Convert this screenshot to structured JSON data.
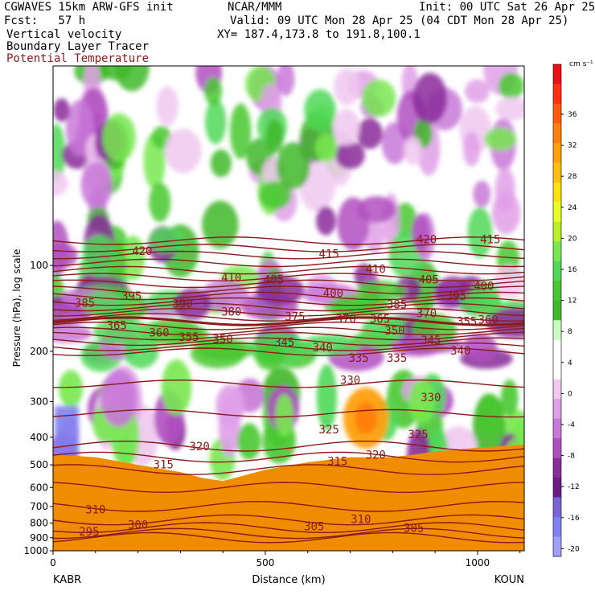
{
  "header": {
    "model": "CGWAVES 15km ARW-GFS init",
    "org": "NCAR/MMM",
    "init": "Init: 00 UTC Sat 26 Apr 25",
    "fcst": "Fcst:   57 h",
    "valid": "Valid: 09 UTC Mon 28 Apr 25 (04 CDT Mon 28 Apr 25)",
    "field1": "Vertical velocity",
    "field2": "Boundary Layer Tracer",
    "field3": "Potential Temperature",
    "xy": "XY= 187.4,173.8 to 191.8,100.1"
  },
  "colors": {
    "theta": "#8b1a1a",
    "pbl": "#f08c00",
    "text": "#000000"
  },
  "chart_data": {
    "type": "heatmap",
    "title": "Vertical velocity / Boundary Layer Tracer / Potential Temperature cross section",
    "xlabel": "Distance (km)",
    "ylabel": "Pressure (hPa), log scale",
    "xlim": [
      0,
      1110
    ],
    "ylim": [
      1000,
      20
    ],
    "x_ticks": [
      0,
      500,
      1000
    ],
    "y_ticks": [
      100,
      200,
      300,
      400,
      500,
      600,
      700,
      800,
      900,
      1000
    ],
    "endpoints": {
      "left": "KABR",
      "right": "KOUN"
    },
    "colorbar": {
      "units": "cm s⁻¹",
      "labels": [
        36,
        32,
        28,
        24,
        20,
        16,
        12,
        8,
        4,
        0,
        -4,
        -8,
        -12,
        -16,
        -20
      ],
      "colors": [
        "#e81212",
        "#ff3010",
        "#ff5a10",
        "#ff7e10",
        "#ffa010",
        "#ffbe10",
        "#ffe010",
        "#e8ff28",
        "#b8f028",
        "#78e850",
        "#50d858",
        "#48c830",
        "#40b828",
        "#c8ffc0",
        "#ffffff",
        "#ffffff",
        "#f0c8f0",
        "#e0a0e8",
        "#c878d8",
        "#b050c0",
        "#8a2c9a",
        "#6a1c84",
        "#7a64d8",
        "#8080f0",
        "#a0a0f8"
      ]
    },
    "theta_labels": [
      {
        "label": "420",
        "x": 210,
        "p": 89
      },
      {
        "label": "410",
        "x": 420,
        "p": 110
      },
      {
        "label": "405",
        "x": 520,
        "p": 112
      },
      {
        "label": "415",
        "x": 650,
        "p": 91
      },
      {
        "label": "410",
        "x": 760,
        "p": 103
      },
      {
        "label": "420",
        "x": 880,
        "p": 81
      },
      {
        "label": "415",
        "x": 1030,
        "p": 81
      },
      {
        "label": "405",
        "x": 885,
        "p": 112
      },
      {
        "label": "400",
        "x": 1015,
        "p": 118
      },
      {
        "label": "400",
        "x": 660,
        "p": 125
      },
      {
        "label": "395",
        "x": 185,
        "p": 128
      },
      {
        "label": "395",
        "x": 950,
        "p": 128
      },
      {
        "label": "390",
        "x": 305,
        "p": 136
      },
      {
        "label": "385",
        "x": 75,
        "p": 135
      },
      {
        "label": "385",
        "x": 810,
        "p": 137
      },
      {
        "label": "380",
        "x": 420,
        "p": 145
      },
      {
        "label": "375",
        "x": 570,
        "p": 151
      },
      {
        "label": "370",
        "x": 690,
        "p": 154
      },
      {
        "label": "370",
        "x": 880,
        "p": 147
      },
      {
        "label": "365",
        "x": 770,
        "p": 154
      },
      {
        "label": "360",
        "x": 1025,
        "p": 155
      },
      {
        "label": "355",
        "x": 975,
        "p": 157
      },
      {
        "label": "350",
        "x": 805,
        "p": 169
      },
      {
        "label": "350",
        "x": 400,
        "p": 181
      },
      {
        "label": "355",
        "x": 320,
        "p": 178
      },
      {
        "label": "360",
        "x": 250,
        "p": 172
      },
      {
        "label": "365",
        "x": 150,
        "p": 162
      },
      {
        "label": "345",
        "x": 545,
        "p": 186
      },
      {
        "label": "345",
        "x": 890,
        "p": 183
      },
      {
        "label": "340",
        "x": 635,
        "p": 194
      },
      {
        "label": "340",
        "x": 960,
        "p": 199
      },
      {
        "label": "335",
        "x": 720,
        "p": 211
      },
      {
        "label": "335",
        "x": 810,
        "p": 211
      },
      {
        "label": "330",
        "x": 700,
        "p": 252
      },
      {
        "label": "330",
        "x": 890,
        "p": 290
      },
      {
        "label": "325",
        "x": 650,
        "p": 375
      },
      {
        "label": "325",
        "x": 860,
        "p": 390
      },
      {
        "label": "320",
        "x": 345,
        "p": 430
      },
      {
        "label": "320",
        "x": 760,
        "p": 460
      },
      {
        "label": "315",
        "x": 260,
        "p": 498
      },
      {
        "label": "315",
        "x": 670,
        "p": 485
      },
      {
        "label": "310",
        "x": 100,
        "p": 715
      },
      {
        "label": "310",
        "x": 725,
        "p": 775
      },
      {
        "label": "305",
        "x": 615,
        "p": 820
      },
      {
        "label": "305",
        "x": 850,
        "p": 830
      },
      {
        "label": "300",
        "x": 200,
        "p": 810
      },
      {
        "label": "295",
        "x": 85,
        "p": 855
      }
    ]
  }
}
